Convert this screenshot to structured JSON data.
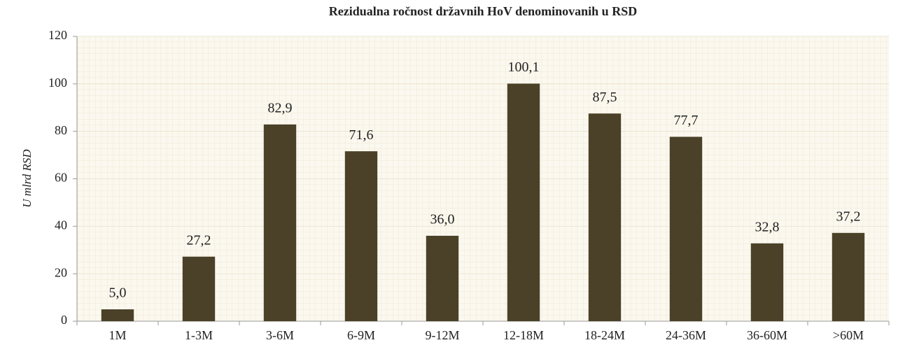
{
  "chart_data": {
    "type": "bar",
    "title": "Rezidualna ročnost državnih HoV denominovanih u RSD",
    "y_label": "U mlrd RSD",
    "categories": [
      "1M",
      "1-3M",
      "3-6M",
      "6-9M",
      "9-12M",
      "12-18M",
      "18-24M",
      "24-36M",
      "36-60M",
      ">60M"
    ],
    "values": [
      5.0,
      27.2,
      82.9,
      71.6,
      36.0,
      100.1,
      87.5,
      77.7,
      32.8,
      37.2
    ],
    "value_labels": [
      "5,0",
      "27,2",
      "82,9",
      "71,6",
      "36,0",
      "100,1",
      "87,5",
      "77,7",
      "32,8",
      "37,2"
    ],
    "color": "#4a4128",
    "ylim": [
      0,
      120
    ],
    "yticks": [
      0,
      20,
      40,
      60,
      80,
      100,
      120
    ],
    "grid": true
  }
}
